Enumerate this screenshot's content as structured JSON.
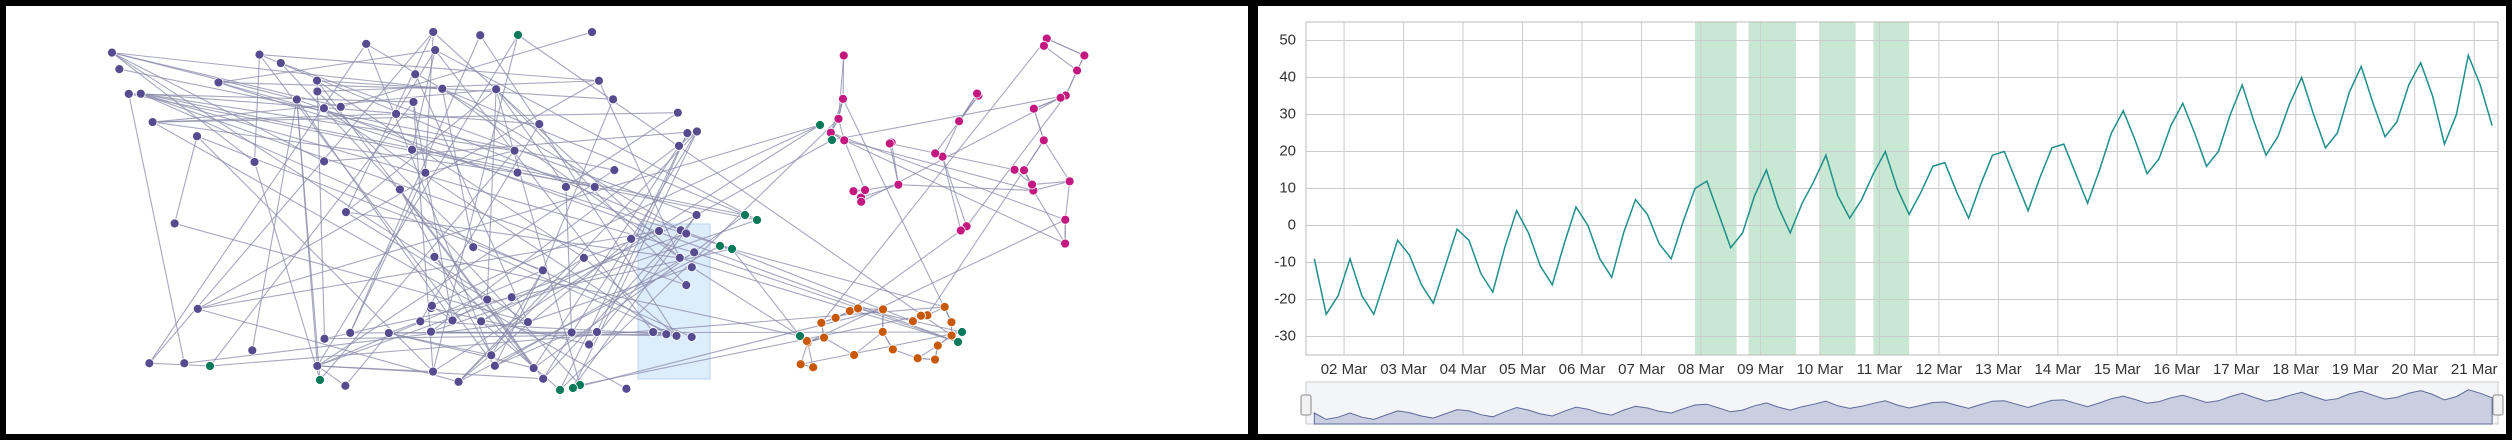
{
  "chart_data": [
    {
      "type": "network",
      "colors": [
        "#574b90",
        "#c2187f",
        "#0b7a5a",
        "#c8590b"
      ]
    },
    {
      "type": "line",
      "x": [
        1.5,
        1.7,
        1.9,
        2.1,
        2.3,
        2.5,
        2.7,
        2.9,
        3.1,
        3.3,
        3.5,
        3.7,
        3.9,
        4.1,
        4.3,
        4.5,
        4.7,
        4.9,
        5.1,
        5.3,
        5.5,
        5.7,
        5.9,
        6.1,
        6.3,
        6.5,
        6.7,
        6.9,
        7.1,
        7.3,
        7.5,
        7.7,
        7.9,
        8.1,
        8.3,
        8.5,
        8.7,
        8.9,
        9.1,
        9.3,
        9.5,
        9.7,
        9.9,
        10.1,
        10.3,
        10.5,
        10.7,
        10.9,
        11.1,
        11.3,
        11.5,
        11.7,
        11.9,
        12.1,
        12.3,
        12.5,
        12.7,
        12.9,
        13.1,
        13.3,
        13.5,
        13.7,
        13.9,
        14.1,
        14.3,
        14.5,
        14.7,
        14.9,
        15.1,
        15.3,
        15.5,
        15.7,
        15.9,
        16.1,
        16.3,
        16.5,
        16.7,
        16.9,
        17.1,
        17.3,
        17.5,
        17.7,
        17.9,
        18.1,
        18.3,
        18.5,
        18.7,
        18.9,
        19.1,
        19.3,
        19.5,
        19.7,
        19.9,
        20.1,
        20.3,
        20.5,
        20.7,
        20.9,
        21.1,
        21.3
      ],
      "series": [
        {
          "color": "#1f8f8a",
          "values": [
            -9,
            -24,
            -19,
            -9,
            -19,
            -24,
            -14,
            -4,
            -8,
            -16,
            -21,
            -11,
            -1,
            -4,
            -13,
            -18,
            -6,
            4,
            -2,
            -11,
            -16,
            -5,
            5,
            0,
            -9,
            -14,
            -2,
            7,
            3,
            -5,
            -9,
            1,
            10,
            12,
            3,
            -6,
            -2,
            8,
            15,
            5,
            -2,
            6,
            12,
            19,
            8,
            2,
            7,
            14,
            20,
            10,
            3,
            9,
            16,
            17,
            9,
            2,
            11,
            19,
            20,
            12,
            4,
            13,
            21,
            22,
            14,
            6,
            15,
            25,
            31,
            23,
            14,
            18,
            27,
            33,
            25,
            16,
            20,
            30,
            38,
            28,
            19,
            24,
            33,
            40,
            30,
            21,
            25,
            36,
            43,
            33,
            24,
            28,
            38,
            44,
            35,
            22,
            30,
            46,
            38,
            27
          ]
        }
      ],
      "bands": [
        [
          7.9,
          8.6
        ],
        [
          8.8,
          9.6
        ],
        [
          10,
          10.6
        ],
        [
          10.9,
          11.5
        ]
      ],
      "band_color": "#a3d9b5",
      "xlim": [
        1.36,
        21.4
      ],
      "ylim": [
        -35,
        55
      ],
      "xticks": [
        {
          "value": 2,
          "label": "02 Mar"
        },
        {
          "value": 3,
          "label": "03 Mar"
        },
        {
          "value": 4,
          "label": "04 Mar"
        },
        {
          "value": 5,
          "label": "05 Mar"
        },
        {
          "value": 6,
          "label": "06 Mar"
        },
        {
          "value": 7,
          "label": "07 Mar"
        },
        {
          "value": 8,
          "label": "08 Mar"
        },
        {
          "value": 9,
          "label": "09 Mar"
        },
        {
          "value": 10,
          "label": "10 Mar"
        },
        {
          "value": 11,
          "label": "11 Mar"
        },
        {
          "value": 12,
          "label": "12 Mar"
        },
        {
          "value": 13,
          "label": "13 Mar"
        },
        {
          "value": 14,
          "label": "14 Mar"
        },
        {
          "value": 15,
          "label": "15 Mar"
        },
        {
          "value": 16,
          "label": "16 Mar"
        },
        {
          "value": 17,
          "label": "17 Mar"
        },
        {
          "value": 18,
          "label": "18 Mar"
        },
        {
          "value": 19,
          "label": "19 Mar"
        },
        {
          "value": 20,
          "label": "20 Mar"
        },
        {
          "value": 21,
          "label": "21 Mar"
        }
      ],
      "yticks": [
        -30,
        -20,
        -10,
        0,
        10,
        20,
        30,
        40,
        50
      ],
      "grid": true,
      "navigator": true
    }
  ]
}
